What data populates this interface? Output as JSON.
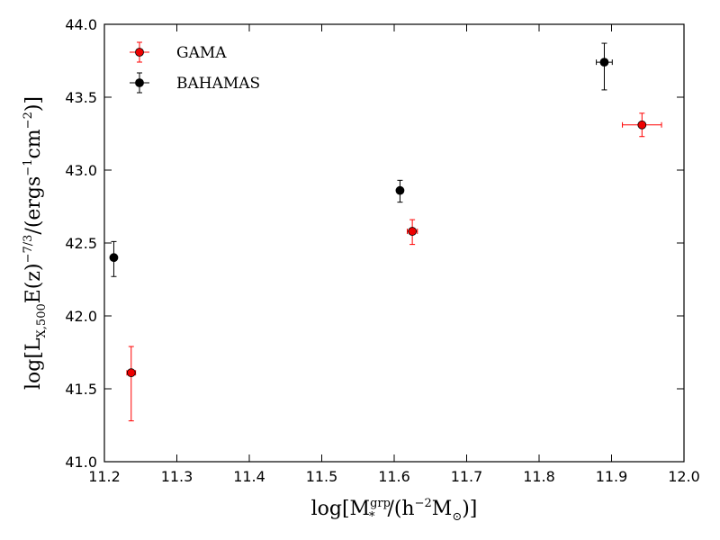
{
  "chart_data": {
    "type": "scatter",
    "title": "",
    "xlabel": {
      "prefix": "log[M",
      "superscript": "grp",
      "subscript": "*",
      "suffix": "/(h",
      "exp": "−2",
      "msun": "M",
      "msun_sub": "⊙",
      "close": ")]"
    },
    "ylabel": {
      "prefix": "log[L",
      "subscript": "X,500",
      "middle": "E(z)",
      "exp1": "−7/3",
      "mid2": "/(ergs",
      "exp2": "−1",
      "mid3": "cm",
      "exp3": "−2",
      "close": ")]"
    },
    "xlim": [
      11.2,
      12.0
    ],
    "ylim": [
      41.0,
      44.0
    ],
    "x_ticks": [
      "11.2",
      "11.3",
      "11.4",
      "11.5",
      "11.6",
      "11.7",
      "11.8",
      "11.9",
      "12.0"
    ],
    "y_ticks": [
      "41.0",
      "41.5",
      "42.0",
      "42.5",
      "43.0",
      "43.5",
      "44.0"
    ],
    "grid": false,
    "legend_position": "top-left",
    "series": [
      {
        "name": "GAMA",
        "color": "#ff0000",
        "marker_color": "#ee0000",
        "points": [
          {
            "x": 11.237,
            "y": 41.61,
            "xerr": 0.006,
            "yerr_low": 0.33,
            "yerr_high": 0.18
          },
          {
            "x": 11.625,
            "y": 42.58,
            "xerr": 0.007,
            "yerr_low": 0.09,
            "yerr_high": 0.08
          },
          {
            "x": 11.942,
            "y": 43.31,
            "xerr": 0.027,
            "yerr_low": 0.08,
            "yerr_high": 0.08
          }
        ]
      },
      {
        "name": "BAHAMAS",
        "color": "#000000",
        "marker_color": "#000000",
        "points": [
          {
            "x": 11.213,
            "y": 42.4,
            "xerr": 0.003,
            "yerr_low": 0.13,
            "yerr_high": 0.11
          },
          {
            "x": 11.608,
            "y": 42.86,
            "xerr": 0.004,
            "yerr_low": 0.08,
            "yerr_high": 0.07
          },
          {
            "x": 11.89,
            "y": 43.74,
            "xerr": 0.011,
            "yerr_low": 0.19,
            "yerr_high": 0.13
          }
        ]
      }
    ]
  }
}
